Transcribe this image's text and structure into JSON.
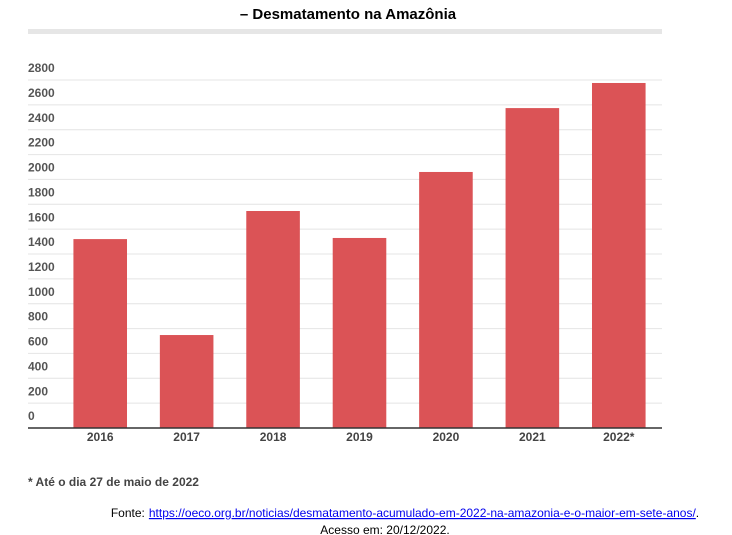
{
  "chart_data": {
    "type": "bar",
    "title": "– Desmatamento na Amazônia",
    "categories": [
      "2016",
      "2017",
      "2018",
      "2019",
      "2020",
      "2021",
      "2022*"
    ],
    "values": [
      1520,
      748,
      1746,
      1529,
      2060,
      2574,
      2776
    ],
    "color": "#db5356",
    "ylim": [
      0,
      2800
    ],
    "yticks": [
      0,
      200,
      400,
      600,
      800,
      1000,
      1200,
      1400,
      1600,
      1800,
      2000,
      2200,
      2400,
      2600,
      2800
    ],
    "grid": true,
    "note": "* Até o dia 27 de maio de 2022",
    "source_prefix": "Fonte:",
    "source_url": "https://oeco.org.br/noticias/desmatamento-acumulado-em-2022-na-amazonia-e-o-maior-em-sete-anos/",
    "access": "Acesso em: 20/12/2022."
  }
}
